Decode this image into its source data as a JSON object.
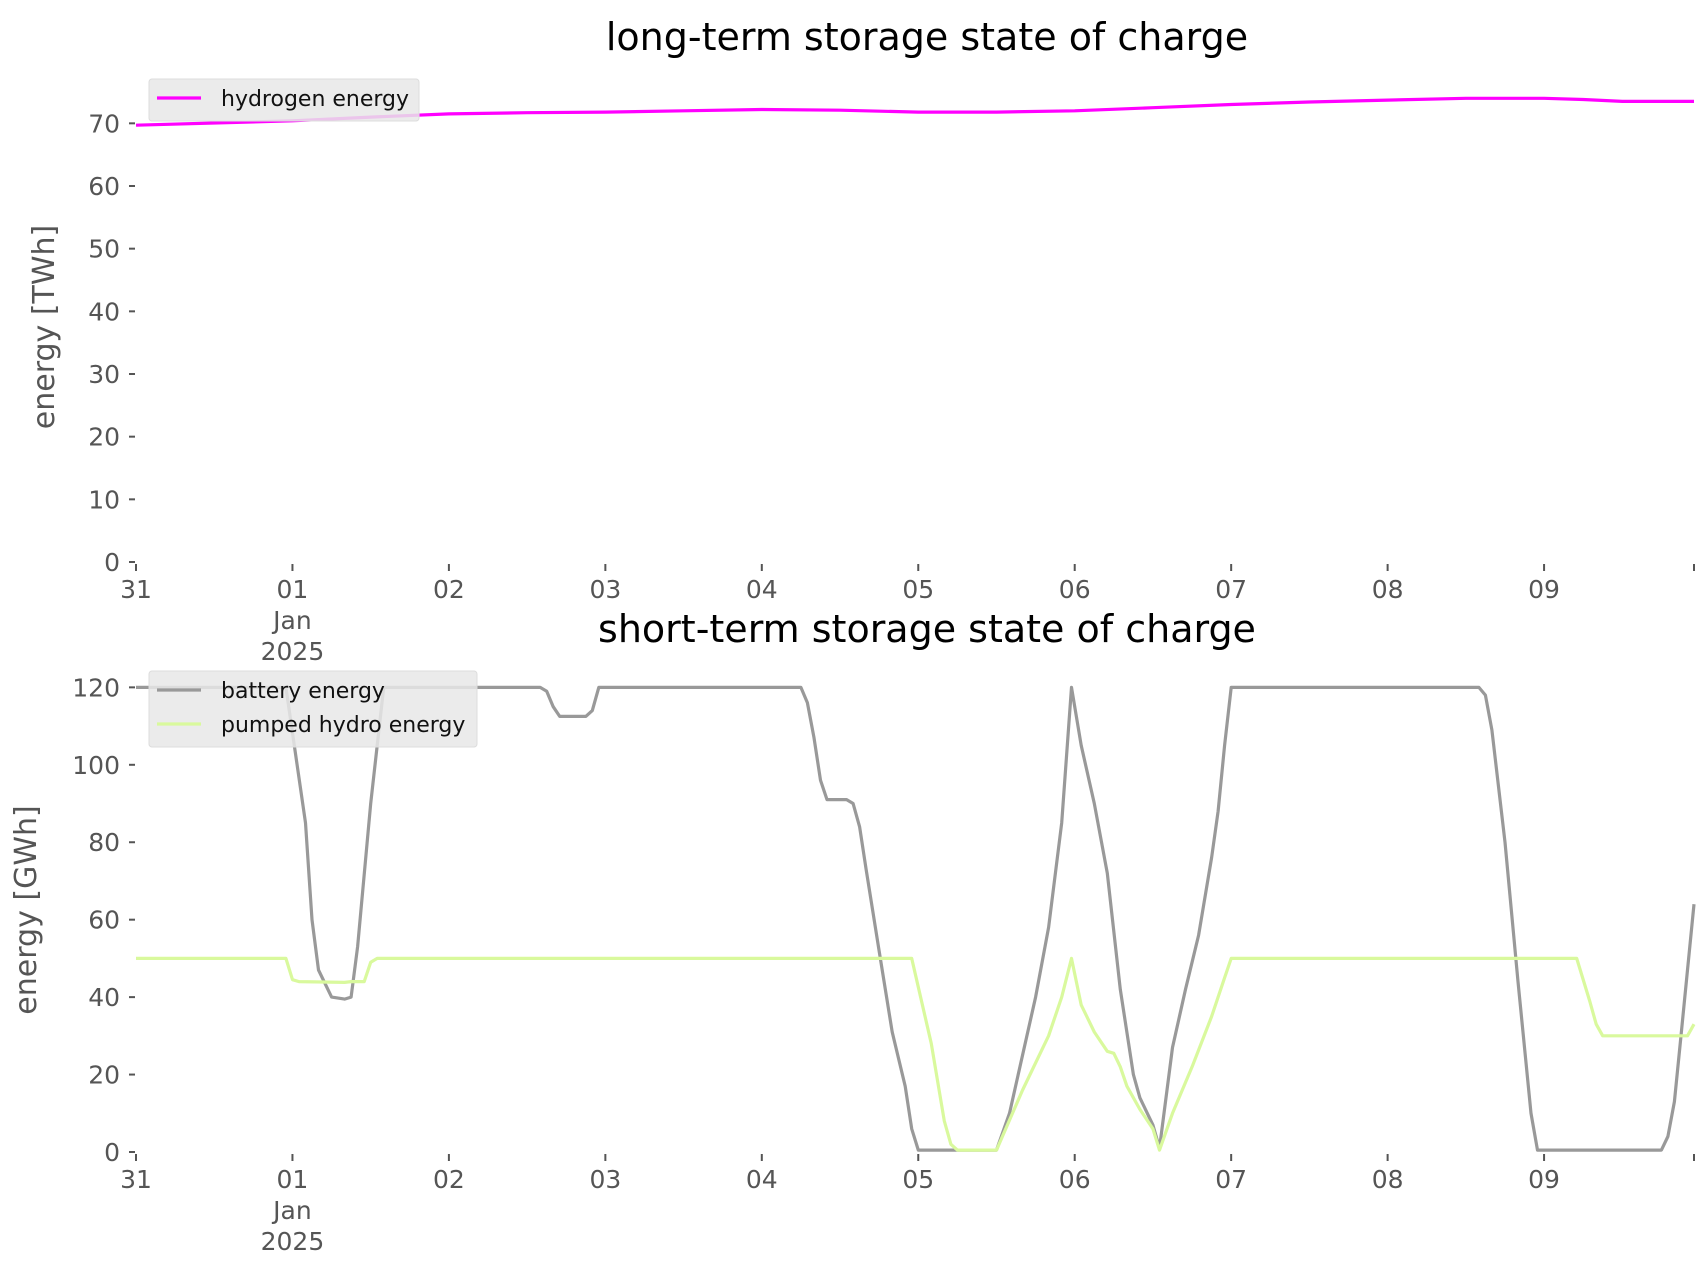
{
  "chart_data": [
    {
      "type": "line",
      "title": "long-term storage state of charge",
      "ylabel": "energy [TWh]",
      "xlabel": "",
      "ylim": [
        0,
        75
      ],
      "yticks": [
        0,
        10,
        20,
        30,
        40,
        50,
        60,
        70
      ],
      "xlim": [
        "2024-12-31",
        "2025-01-09T23:00"
      ],
      "xticks": [
        {
          "date": "2024-12-31",
          "label": "31",
          "sub": []
        },
        {
          "date": "2025-01-01",
          "label": "01",
          "sub": [
            "Jan",
            "2025"
          ]
        },
        {
          "date": "2025-01-02",
          "label": "02",
          "sub": []
        },
        {
          "date": "2025-01-03",
          "label": "03",
          "sub": []
        },
        {
          "date": "2025-01-04",
          "label": "04",
          "sub": []
        },
        {
          "date": "2025-01-05",
          "label": "05",
          "sub": []
        },
        {
          "date": "2025-01-06",
          "label": "06",
          "sub": []
        },
        {
          "date": "2025-01-07",
          "label": "07",
          "sub": []
        },
        {
          "date": "2025-01-08",
          "label": "08",
          "sub": []
        },
        {
          "date": "2025-01-09",
          "label": "09",
          "sub": []
        }
      ],
      "legend": "top-left",
      "grid": false,
      "series": [
        {
          "name": "hydrogen energy",
          "color": "#ff00ff",
          "points": [
            [
              "2024-12-31T00:00",
              69.7
            ],
            [
              "2025-01-01T00:00",
              70.4
            ],
            [
              "2025-01-01T12:00",
              71.0
            ],
            [
              "2025-01-02T00:00",
              71.5
            ],
            [
              "2025-01-02T12:00",
              71.7
            ],
            [
              "2025-01-03T00:00",
              71.8
            ],
            [
              "2025-01-03T12:00",
              72.0
            ],
            [
              "2025-01-04T00:00",
              72.2
            ],
            [
              "2025-01-04T12:00",
              72.1
            ],
            [
              "2025-01-05T00:00",
              71.8
            ],
            [
              "2025-01-05T12:00",
              71.8
            ],
            [
              "2025-01-06T00:00",
              72.0
            ],
            [
              "2025-01-06T12:00",
              72.5
            ],
            [
              "2025-01-07T00:00",
              73.0
            ],
            [
              "2025-01-07T12:00",
              73.4
            ],
            [
              "2025-01-08T00:00",
              73.7
            ],
            [
              "2025-01-08T12:00",
              74.0
            ],
            [
              "2025-01-09T00:00",
              74.0
            ],
            [
              "2025-01-09T06:00",
              73.8
            ],
            [
              "2025-01-09T12:00",
              73.5
            ],
            [
              "2025-01-09T23:00",
              73.5
            ]
          ]
        }
      ]
    },
    {
      "type": "line",
      "title": "short-term storage state of charge",
      "ylabel": "energy [GWh]",
      "xlabel": "",
      "ylim": [
        0,
        125
      ],
      "yticks": [
        0,
        20,
        40,
        60,
        80,
        100,
        120
      ],
      "xlim": [
        "2024-12-31",
        "2025-01-09T23:00"
      ],
      "xticks": [
        {
          "date": "2024-12-31",
          "label": "31",
          "sub": []
        },
        {
          "date": "2025-01-01",
          "label": "01",
          "sub": [
            "Jan",
            "2025"
          ]
        },
        {
          "date": "2025-01-02",
          "label": "02",
          "sub": []
        },
        {
          "date": "2025-01-03",
          "label": "03",
          "sub": []
        },
        {
          "date": "2025-01-04",
          "label": "04",
          "sub": []
        },
        {
          "date": "2025-01-05",
          "label": "05",
          "sub": []
        },
        {
          "date": "2025-01-06",
          "label": "06",
          "sub": []
        },
        {
          "date": "2025-01-07",
          "label": "07",
          "sub": []
        },
        {
          "date": "2025-01-08",
          "label": "08",
          "sub": []
        },
        {
          "date": "2025-01-09",
          "label": "09",
          "sub": []
        }
      ],
      "legend": "top-left",
      "grid": false,
      "series": [
        {
          "name": "battery energy",
          "color": "#999999",
          "points": [
            [
              "2024-12-31T00:00",
              120
            ],
            [
              "2024-12-31T23:00",
              120
            ],
            [
              "2025-01-01T02:00",
              85
            ],
            [
              "2025-01-01T03:00",
              60
            ],
            [
              "2025-01-01T04:00",
              47
            ],
            [
              "2025-01-01T06:00",
              40
            ],
            [
              "2025-01-01T08:00",
              39.5
            ],
            [
              "2025-01-01T09:00",
              40
            ],
            [
              "2025-01-01T10:00",
              53
            ],
            [
              "2025-01-01T12:00",
              90
            ],
            [
              "2025-01-01T14:00",
              120
            ],
            [
              "2025-01-02T14:00",
              120
            ],
            [
              "2025-01-02T15:00",
              119
            ],
            [
              "2025-01-02T16:00",
              115
            ],
            [
              "2025-01-02T17:00",
              112.5
            ],
            [
              "2025-01-02T21:00",
              112.5
            ],
            [
              "2025-01-02T22:00",
              114
            ],
            [
              "2025-01-02T23:00",
              120
            ],
            [
              "2025-01-04T06:00",
              120
            ],
            [
              "2025-01-04T07:00",
              116
            ],
            [
              "2025-01-04T08:00",
              107
            ],
            [
              "2025-01-04T09:00",
              96
            ],
            [
              "2025-01-04T10:00",
              91
            ],
            [
              "2025-01-04T13:00",
              91
            ],
            [
              "2025-01-04T14:00",
              90
            ],
            [
              "2025-01-04T15:00",
              84
            ],
            [
              "2025-01-04T16:00",
              73
            ],
            [
              "2025-01-04T18:00",
              52
            ],
            [
              "2025-01-04T20:00",
              31
            ],
            [
              "2025-01-04T22:00",
              17
            ],
            [
              "2025-01-04T23:00",
              6
            ],
            [
              "2025-01-05T00:00",
              0.5
            ],
            [
              "2025-01-05T12:00",
              0.5
            ],
            [
              "2025-01-05T14:00",
              10
            ],
            [
              "2025-01-05T18:00",
              40
            ],
            [
              "2025-01-05T20:00",
              58
            ],
            [
              "2025-01-05T22:00",
              85
            ],
            [
              "2025-01-05T23:30",
              120
            ],
            [
              "2025-01-06T01:00",
              105
            ],
            [
              "2025-01-06T03:00",
              90
            ],
            [
              "2025-01-06T05:00",
              72
            ],
            [
              "2025-01-06T07:00",
              42
            ],
            [
              "2025-01-06T09:00",
              20
            ],
            [
              "2025-01-06T10:00",
              14
            ],
            [
              "2025-01-06T12:00",
              7
            ],
            [
              "2025-01-06T13:00",
              1
            ],
            [
              "2025-01-06T15:00",
              27
            ],
            [
              "2025-01-06T17:00",
              42
            ],
            [
              "2025-01-06T19:00",
              56
            ],
            [
              "2025-01-06T21:00",
              76
            ],
            [
              "2025-01-06T22:00",
              88
            ],
            [
              "2025-01-06T23:00",
              105
            ],
            [
              "2025-01-07T00:00",
              120
            ],
            [
              "2025-01-08T14:00",
              120
            ],
            [
              "2025-01-08T15:00",
              118
            ],
            [
              "2025-01-08T16:00",
              109
            ],
            [
              "2025-01-08T18:00",
              80
            ],
            [
              "2025-01-08T20:00",
              44
            ],
            [
              "2025-01-08T22:00",
              10
            ],
            [
              "2025-01-08T23:00",
              0.5
            ],
            [
              "2025-01-09T18:00",
              0.5
            ],
            [
              "2025-01-09T19:00",
              4
            ],
            [
              "2025-01-09T20:00",
              13
            ],
            [
              "2025-01-09T21:00",
              30
            ],
            [
              "2025-01-09T23:00",
              64
            ]
          ]
        },
        {
          "name": "pumped hydro energy",
          "color": "#d9f99d",
          "points": [
            [
              "2024-12-31T00:00",
              50
            ],
            [
              "2024-12-31T23:00",
              50
            ],
            [
              "2025-01-01T00:00",
              44.5
            ],
            [
              "2025-01-01T01:00",
              44
            ],
            [
              "2025-01-01T08:00",
              43.8
            ],
            [
              "2025-01-01T09:00",
              44
            ],
            [
              "2025-01-01T11:00",
              44
            ],
            [
              "2025-01-01T12:00",
              49
            ],
            [
              "2025-01-01T13:00",
              50
            ],
            [
              "2025-01-04T23:00",
              50
            ],
            [
              "2025-01-05T02:00",
              28
            ],
            [
              "2025-01-05T04:00",
              8
            ],
            [
              "2025-01-05T05:00",
              2
            ],
            [
              "2025-01-05T06:00",
              0.5
            ],
            [
              "2025-01-05T12:00",
              0.5
            ],
            [
              "2025-01-05T16:00",
              16
            ],
            [
              "2025-01-05T20:00",
              30
            ],
            [
              "2025-01-05T22:00",
              40
            ],
            [
              "2025-01-05T23:30",
              50
            ],
            [
              "2025-01-06T01:00",
              38
            ],
            [
              "2025-01-06T03:00",
              31
            ],
            [
              "2025-01-06T05:00",
              26
            ],
            [
              "2025-01-06T06:00",
              25.5
            ],
            [
              "2025-01-06T07:00",
              22
            ],
            [
              "2025-01-06T08:00",
              17
            ],
            [
              "2025-01-06T10:00",
              11
            ],
            [
              "2025-01-06T12:00",
              6
            ],
            [
              "2025-01-06T13:00",
              0.5
            ],
            [
              "2025-01-06T15:00",
              10
            ],
            [
              "2025-01-06T18:00",
              22
            ],
            [
              "2025-01-06T21:00",
              35
            ],
            [
              "2025-01-06T23:00",
              45
            ],
            [
              "2025-01-07T00:00",
              50
            ],
            [
              "2025-01-09T05:00",
              50
            ],
            [
              "2025-01-09T07:00",
              39
            ],
            [
              "2025-01-09T08:00",
              33
            ],
            [
              "2025-01-09T09:00",
              30
            ],
            [
              "2025-01-09T22:00",
              30
            ],
            [
              "2025-01-09T23:00",
              33
            ]
          ]
        }
      ]
    }
  ]
}
